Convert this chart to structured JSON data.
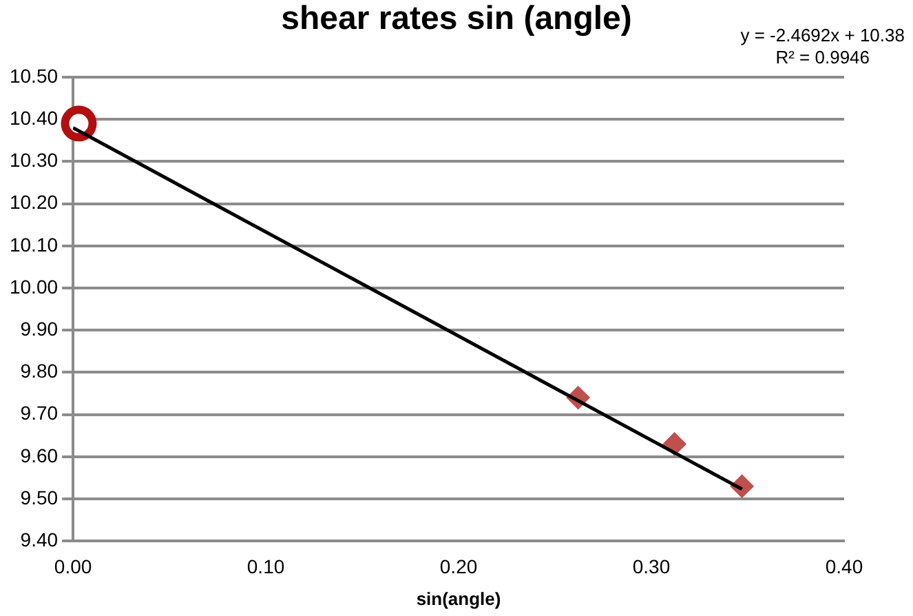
{
  "chart_data": {
    "type": "scatter",
    "title": "shear rates sin (angle)",
    "xlabel": "sin(angle)",
    "xlim": [
      0,
      0.4
    ],
    "xticks": [
      {
        "value": 0,
        "label": "0.00"
      },
      {
        "value": 0.1,
        "label": "0.10"
      },
      {
        "value": 0.2,
        "label": "0.20"
      },
      {
        "value": 0.3,
        "label": "0.30"
      },
      {
        "value": 0.4,
        "label": "0.40"
      }
    ],
    "ylim": [
      9.4,
      10.5
    ],
    "yticks": [
      {
        "value": 9.4,
        "label": "9.40"
      },
      {
        "value": 9.5,
        "label": "9.50"
      },
      {
        "value": 9.6,
        "label": "9.60"
      },
      {
        "value": 9.7,
        "label": "9.70"
      },
      {
        "value": 9.8,
        "label": "9.80"
      },
      {
        "value": 9.9,
        "label": "9.90"
      },
      {
        "value": 10.0,
        "label": "10.00"
      },
      {
        "value": 10.1,
        "label": "10.10"
      },
      {
        "value": 10.2,
        "label": "10.20"
      },
      {
        "value": 10.3,
        "label": "10.30"
      },
      {
        "value": 10.4,
        "label": "10.40"
      },
      {
        "value": 10.5,
        "label": "10.50"
      }
    ],
    "grid": "y",
    "series": [
      {
        "type": "line",
        "color": "#000000",
        "marker": "none",
        "x": [
          0,
          0.347
        ],
        "values": [
          10.38,
          9.523
        ]
      },
      {
        "color": "#c0504d",
        "marker": "diamond",
        "x": [
          0.262,
          0.312,
          0.347
        ],
        "values": [
          9.74,
          9.63,
          9.53
        ]
      },
      {
        "color": "#b01010",
        "marker": "circle",
        "x": [
          0.003
        ],
        "values": [
          10.39
        ]
      }
    ],
    "annotations": [
      "y = -2.4692x + 10.38",
      "R² = 0.9946"
    ]
  }
}
